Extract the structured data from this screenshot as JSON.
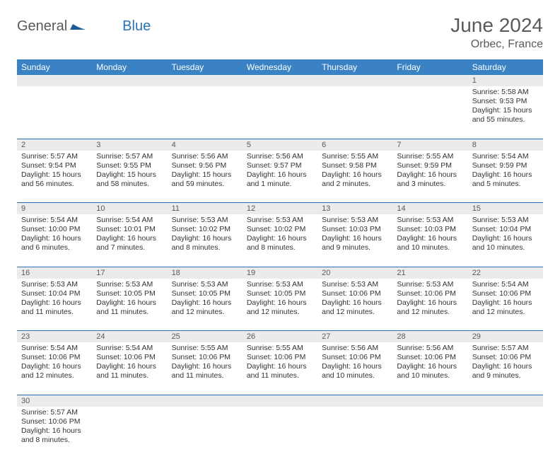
{
  "brand": {
    "part1": "General",
    "part2": "Blue"
  },
  "title": "June 2024",
  "location": "Orbec, France",
  "colors": {
    "header_bg": "#3b82c4",
    "header_text": "#ffffff",
    "daynum_bg": "#ebebeb",
    "border": "#2a72b5",
    "brand_gray": "#5a5a5a",
    "brand_blue": "#2a72b5",
    "page_bg": "#ffffff",
    "text": "#333333"
  },
  "typography": {
    "base_font": "Arial",
    "title_size_pt": 21,
    "location_size_pt": 12,
    "header_size_pt": 9,
    "cell_size_pt": 8
  },
  "day_headers": [
    "Sunday",
    "Monday",
    "Tuesday",
    "Wednesday",
    "Thursday",
    "Friday",
    "Saturday"
  ],
  "weeks": [
    [
      null,
      null,
      null,
      null,
      null,
      null,
      {
        "n": "1",
        "sunrise": "Sunrise: 5:58 AM",
        "sunset": "Sunset: 9:53 PM",
        "daylight": "Daylight: 15 hours and 55 minutes."
      }
    ],
    [
      {
        "n": "2",
        "sunrise": "Sunrise: 5:57 AM",
        "sunset": "Sunset: 9:54 PM",
        "daylight": "Daylight: 15 hours and 56 minutes."
      },
      {
        "n": "3",
        "sunrise": "Sunrise: 5:57 AM",
        "sunset": "Sunset: 9:55 PM",
        "daylight": "Daylight: 15 hours and 58 minutes."
      },
      {
        "n": "4",
        "sunrise": "Sunrise: 5:56 AM",
        "sunset": "Sunset: 9:56 PM",
        "daylight": "Daylight: 15 hours and 59 minutes."
      },
      {
        "n": "5",
        "sunrise": "Sunrise: 5:56 AM",
        "sunset": "Sunset: 9:57 PM",
        "daylight": "Daylight: 16 hours and 1 minute."
      },
      {
        "n": "6",
        "sunrise": "Sunrise: 5:55 AM",
        "sunset": "Sunset: 9:58 PM",
        "daylight": "Daylight: 16 hours and 2 minutes."
      },
      {
        "n": "7",
        "sunrise": "Sunrise: 5:55 AM",
        "sunset": "Sunset: 9:59 PM",
        "daylight": "Daylight: 16 hours and 3 minutes."
      },
      {
        "n": "8",
        "sunrise": "Sunrise: 5:54 AM",
        "sunset": "Sunset: 9:59 PM",
        "daylight": "Daylight: 16 hours and 5 minutes."
      }
    ],
    [
      {
        "n": "9",
        "sunrise": "Sunrise: 5:54 AM",
        "sunset": "Sunset: 10:00 PM",
        "daylight": "Daylight: 16 hours and 6 minutes."
      },
      {
        "n": "10",
        "sunrise": "Sunrise: 5:54 AM",
        "sunset": "Sunset: 10:01 PM",
        "daylight": "Daylight: 16 hours and 7 minutes."
      },
      {
        "n": "11",
        "sunrise": "Sunrise: 5:53 AM",
        "sunset": "Sunset: 10:02 PM",
        "daylight": "Daylight: 16 hours and 8 minutes."
      },
      {
        "n": "12",
        "sunrise": "Sunrise: 5:53 AM",
        "sunset": "Sunset: 10:02 PM",
        "daylight": "Daylight: 16 hours and 8 minutes."
      },
      {
        "n": "13",
        "sunrise": "Sunrise: 5:53 AM",
        "sunset": "Sunset: 10:03 PM",
        "daylight": "Daylight: 16 hours and 9 minutes."
      },
      {
        "n": "14",
        "sunrise": "Sunrise: 5:53 AM",
        "sunset": "Sunset: 10:03 PM",
        "daylight": "Daylight: 16 hours and 10 minutes."
      },
      {
        "n": "15",
        "sunrise": "Sunrise: 5:53 AM",
        "sunset": "Sunset: 10:04 PM",
        "daylight": "Daylight: 16 hours and 10 minutes."
      }
    ],
    [
      {
        "n": "16",
        "sunrise": "Sunrise: 5:53 AM",
        "sunset": "Sunset: 10:04 PM",
        "daylight": "Daylight: 16 hours and 11 minutes."
      },
      {
        "n": "17",
        "sunrise": "Sunrise: 5:53 AM",
        "sunset": "Sunset: 10:05 PM",
        "daylight": "Daylight: 16 hours and 11 minutes."
      },
      {
        "n": "18",
        "sunrise": "Sunrise: 5:53 AM",
        "sunset": "Sunset: 10:05 PM",
        "daylight": "Daylight: 16 hours and 12 minutes."
      },
      {
        "n": "19",
        "sunrise": "Sunrise: 5:53 AM",
        "sunset": "Sunset: 10:05 PM",
        "daylight": "Daylight: 16 hours and 12 minutes."
      },
      {
        "n": "20",
        "sunrise": "Sunrise: 5:53 AM",
        "sunset": "Sunset: 10:06 PM",
        "daylight": "Daylight: 16 hours and 12 minutes."
      },
      {
        "n": "21",
        "sunrise": "Sunrise: 5:53 AM",
        "sunset": "Sunset: 10:06 PM",
        "daylight": "Daylight: 16 hours and 12 minutes."
      },
      {
        "n": "22",
        "sunrise": "Sunrise: 5:54 AM",
        "sunset": "Sunset: 10:06 PM",
        "daylight": "Daylight: 16 hours and 12 minutes."
      }
    ],
    [
      {
        "n": "23",
        "sunrise": "Sunrise: 5:54 AM",
        "sunset": "Sunset: 10:06 PM",
        "daylight": "Daylight: 16 hours and 12 minutes."
      },
      {
        "n": "24",
        "sunrise": "Sunrise: 5:54 AM",
        "sunset": "Sunset: 10:06 PM",
        "daylight": "Daylight: 16 hours and 11 minutes."
      },
      {
        "n": "25",
        "sunrise": "Sunrise: 5:55 AM",
        "sunset": "Sunset: 10:06 PM",
        "daylight": "Daylight: 16 hours and 11 minutes."
      },
      {
        "n": "26",
        "sunrise": "Sunrise: 5:55 AM",
        "sunset": "Sunset: 10:06 PM",
        "daylight": "Daylight: 16 hours and 11 minutes."
      },
      {
        "n": "27",
        "sunrise": "Sunrise: 5:56 AM",
        "sunset": "Sunset: 10:06 PM",
        "daylight": "Daylight: 16 hours and 10 minutes."
      },
      {
        "n": "28",
        "sunrise": "Sunrise: 5:56 AM",
        "sunset": "Sunset: 10:06 PM",
        "daylight": "Daylight: 16 hours and 10 minutes."
      },
      {
        "n": "29",
        "sunrise": "Sunrise: 5:57 AM",
        "sunset": "Sunset: 10:06 PM",
        "daylight": "Daylight: 16 hours and 9 minutes."
      }
    ],
    [
      {
        "n": "30",
        "sunrise": "Sunrise: 5:57 AM",
        "sunset": "Sunset: 10:06 PM",
        "daylight": "Daylight: 16 hours and 8 minutes."
      },
      null,
      null,
      null,
      null,
      null,
      null
    ]
  ]
}
